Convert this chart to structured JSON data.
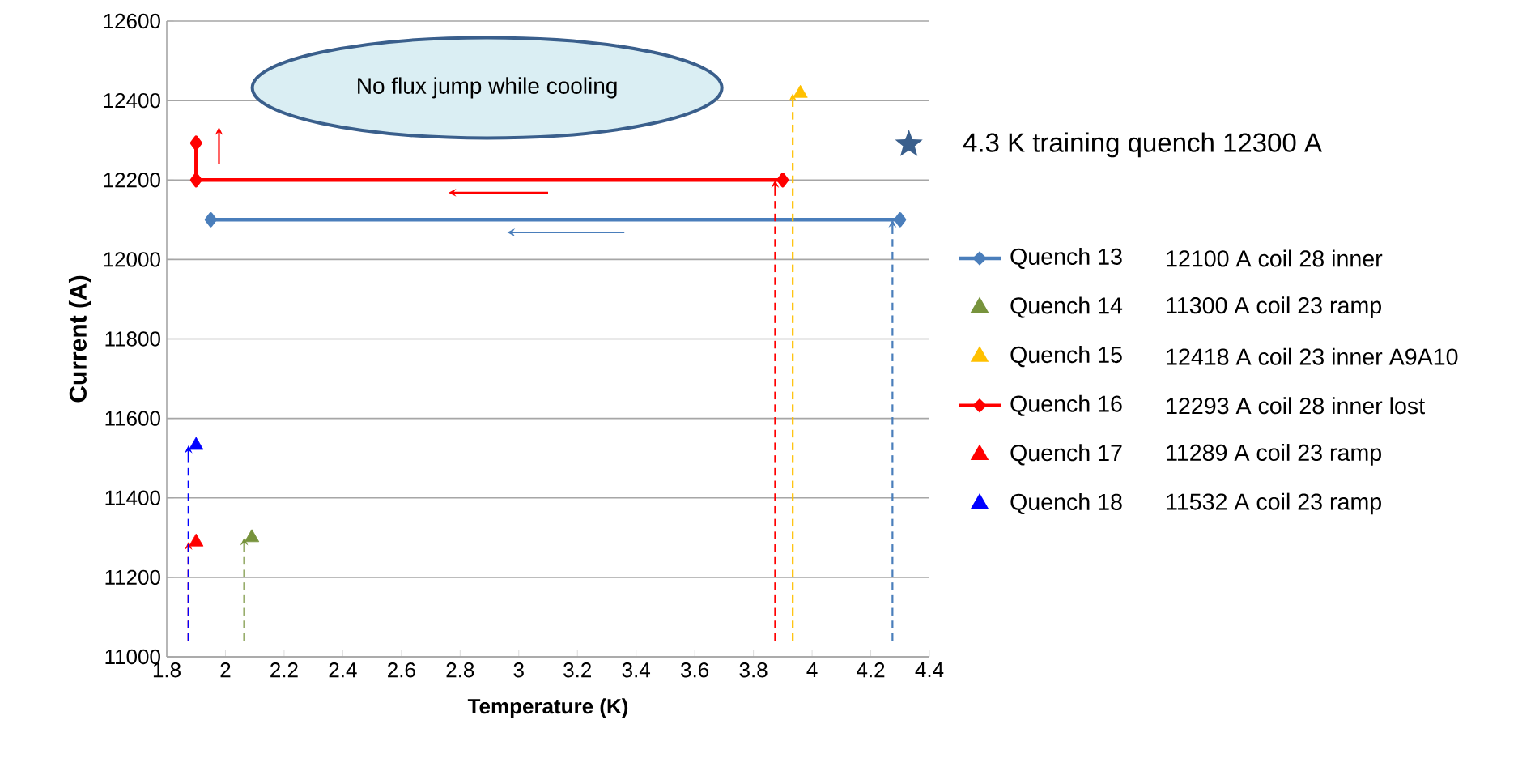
{
  "chart_data": {
    "type": "scatter",
    "xlabel": "Temperature (K)",
    "ylabel": "Current  (A)",
    "xlim": [
      1.8,
      4.4
    ],
    "xticks": [
      1.8,
      2,
      2.2,
      2.4,
      2.6,
      2.8,
      3,
      3.2,
      3.4,
      3.6,
      3.8,
      4,
      4.2,
      4.4
    ],
    "ylim": [
      11000,
      12600
    ],
    "yticks": [
      11000,
      11200,
      11400,
      11600,
      11800,
      12000,
      12200,
      12400,
      12600
    ],
    "grid": "y",
    "legend": "right",
    "marker": "triangle",
    "annotations": [
      "No flux jump while cooling",
      "12100 A coil 28 inner",
      "11300 A coil 23 ramp",
      "12418 A coil 23 inner A9A10",
      "12293 A coil 28 inner lost",
      "11289 A coil 23 ramp",
      "11532 A coil 23 ramp"
    ],
    "series": [
      {
        "name": "Quench 13",
        "type": "line",
        "marker": "diamond",
        "color": "#4a7ebb",
        "x": [
          1.95,
          4.3
        ],
        "values": [
          12100,
          12100
        ]
      },
      {
        "name": "Quench 14",
        "color": "#77933c",
        "x": [
          2.09
        ],
        "values": [
          11300
        ]
      },
      {
        "name": "Quench 15",
        "color": "#ffc000",
        "x": [
          3.96
        ],
        "values": [
          12418
        ]
      },
      {
        "name": "Quench 16",
        "type": "line",
        "marker": "diamond",
        "color": "#ff0000",
        "x": [
          1.9,
          1.9,
          3.9
        ],
        "values": [
          12293,
          12200,
          12200
        ]
      },
      {
        "name": "Quench 17",
        "color": "#ff0000",
        "x": [
          1.9
        ],
        "values": [
          11289
        ]
      },
      {
        "name": "Quench 18",
        "color": "#0000ff",
        "x": [
          1.9
        ],
        "values": [
          11532
        ]
      },
      {
        "name": "4.3 K training quench 12300 A",
        "marker": "star",
        "color": "#3a5f8c",
        "x": [
          4.33
        ],
        "values": [
          12290
        ]
      }
    ]
  }
}
